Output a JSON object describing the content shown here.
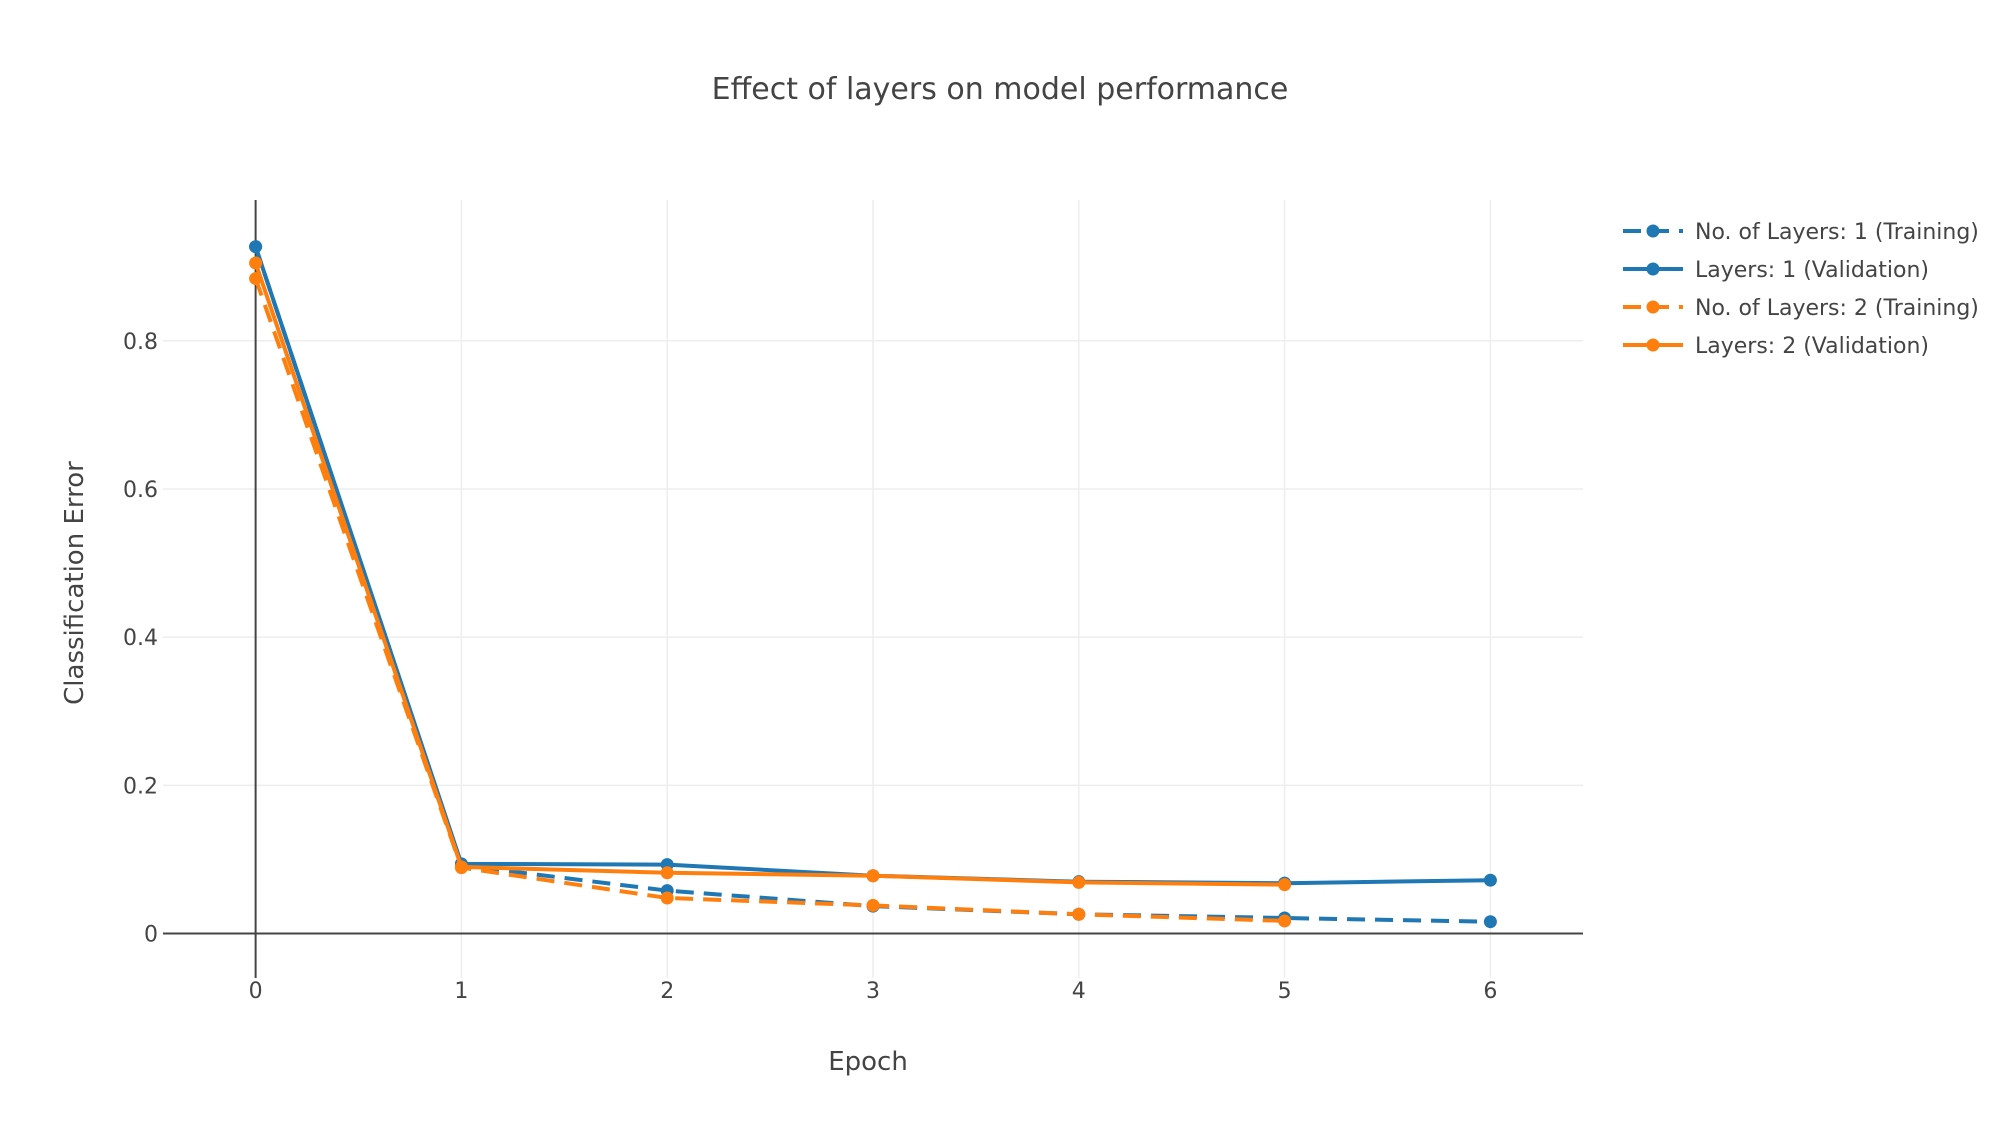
{
  "chart_data": {
    "type": "line",
    "title": "Effect of layers on model performance",
    "xlabel": "Epoch",
    "ylabel": "Classification Error",
    "xlim": [
      -0.45,
      6.45
    ],
    "ylim": [
      -0.06,
      0.99
    ],
    "xticks": [
      0,
      1,
      2,
      3,
      4,
      5,
      6
    ],
    "xtick_labels": [
      "0",
      "1",
      "2",
      "3",
      "4",
      "5",
      "6"
    ],
    "yticks": [
      0,
      0.2,
      0.4,
      0.6,
      0.8
    ],
    "ytick_labels": [
      "0",
      "0.2",
      "0.4",
      "0.6",
      "0.8"
    ],
    "grid": true,
    "legend_position": "top-right",
    "series": [
      {
        "name": "No. of Layers: 1 (Training)",
        "color": "#1f77b4",
        "dash": "dashed",
        "x": [
          0,
          1,
          2,
          3,
          4,
          5,
          6
        ],
        "values": [
          0.927,
          0.092,
          0.058,
          0.037,
          0.026,
          0.021,
          0.016
        ]
      },
      {
        "name": "Layers: 1 (Validation)",
        "color": "#1f77b4",
        "dash": "solid",
        "x": [
          0,
          1,
          2,
          3,
          4,
          5,
          6
        ],
        "values": [
          0.927,
          0.094,
          0.093,
          0.078,
          0.07,
          0.068,
          0.072
        ]
      },
      {
        "name": "No. of Layers: 2 (Training)",
        "color": "#ff7f0e",
        "dash": "dashed",
        "x": [
          0,
          1,
          2,
          3,
          4,
          5
        ],
        "values": [
          0.884,
          0.089,
          0.048,
          0.038,
          0.026,
          0.017
        ]
      },
      {
        "name": "Layers: 2 (Validation)",
        "color": "#ff7f0e",
        "dash": "solid",
        "x": [
          0,
          1,
          2,
          3,
          4,
          5
        ],
        "values": [
          0.905,
          0.09,
          0.082,
          0.078,
          0.069,
          0.066
        ]
      }
    ]
  }
}
